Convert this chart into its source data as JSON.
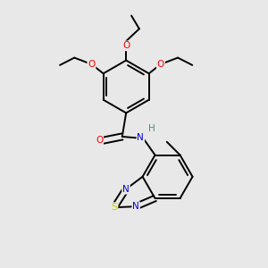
{
  "bg_color": "#e8e8e8",
  "atom_colors": {
    "C": "#000000",
    "N": "#0000cd",
    "O": "#ff0000",
    "S": "#cccc00",
    "H": "#4a8f7a"
  },
  "bond_color": "#000000",
  "bond_width": 1.4,
  "figsize": [
    3.0,
    3.0
  ],
  "dpi": 100
}
